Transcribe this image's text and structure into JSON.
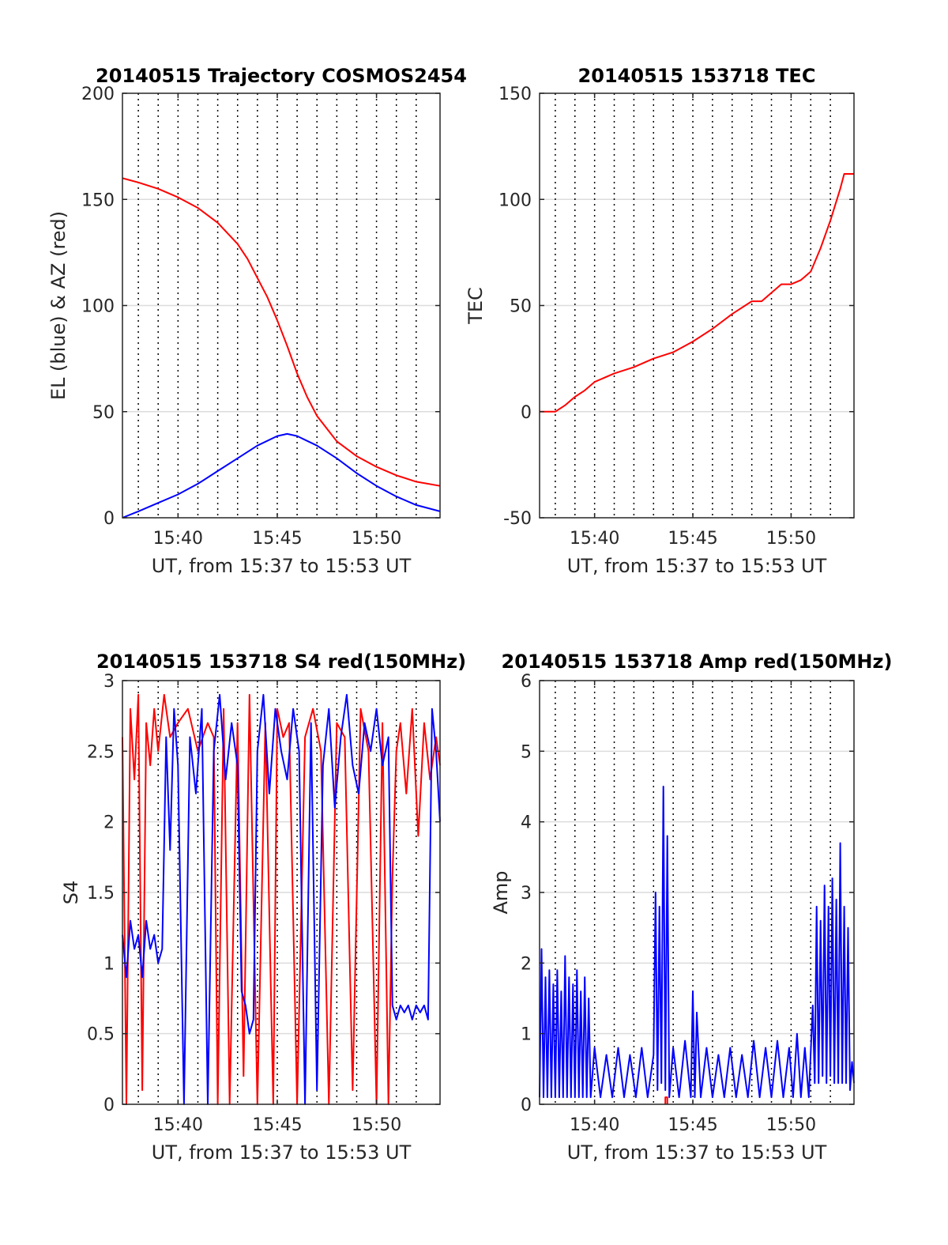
{
  "colors": {
    "red": "#ff0000",
    "blue": "#0000ff",
    "grid": "#dcdcdc",
    "axis": "#262626"
  },
  "chart_data": [
    {
      "type": "line",
      "title": "20140515 Trajectory COSMOS2454",
      "xlabel": "UT, from 15:37 to 15:53 UT",
      "ylabel": "EL (blue) & AZ (red)",
      "xlim": [
        37.2,
        53.2
      ],
      "ylim": [
        0,
        200
      ],
      "x_ticks": [
        40,
        45,
        50
      ],
      "x_tick_labels": [
        "15:40",
        "15:45",
        "15:50"
      ],
      "y_ticks": [
        0,
        50,
        100,
        150,
        200
      ],
      "y_tick_labels": [
        "0",
        "50",
        "100",
        "150",
        "200"
      ],
      "minute_lines": [
        38,
        39,
        40,
        41,
        42,
        43,
        44,
        45,
        46,
        47,
        48,
        49,
        50,
        51,
        52
      ],
      "series": [
        {
          "color": "#ff0000",
          "x": [
            37.2,
            38,
            39,
            40,
            41,
            42,
            43,
            43.5,
            44,
            44.5,
            45,
            45.5,
            46,
            46.5,
            47,
            48,
            49,
            50,
            51,
            52,
            53.2
          ],
          "y": [
            160,
            158,
            155,
            151,
            146,
            139,
            129,
            122,
            113,
            104,
            93,
            81,
            68,
            57,
            48,
            36,
            29,
            24,
            20,
            17,
            15
          ]
        },
        {
          "color": "#0000ff",
          "x": [
            37.2,
            38,
            39,
            40,
            41,
            42,
            43,
            44,
            45,
            45.5,
            46,
            47,
            48,
            49,
            50,
            51,
            52,
            53.2
          ],
          "y": [
            0,
            3,
            7,
            11,
            16,
            22,
            28,
            34,
            38.5,
            39.5,
            38.5,
            34,
            28,
            21,
            15,
            10,
            6,
            3
          ]
        }
      ]
    },
    {
      "type": "line",
      "title": "20140515 153718 TEC",
      "xlabel": "UT, from 15:37 to 15:53 UT",
      "ylabel": "TEC",
      "xlim": [
        37.2,
        53.2
      ],
      "ylim": [
        -50,
        150
      ],
      "x_ticks": [
        40,
        45,
        50
      ],
      "x_tick_labels": [
        "15:40",
        "15:45",
        "15:50"
      ],
      "y_ticks": [
        -50,
        0,
        50,
        100,
        150
      ],
      "y_tick_labels": [
        "-50",
        "0",
        "50",
        "100",
        "150"
      ],
      "minute_lines": [
        38,
        39,
        40,
        41,
        42,
        43,
        44,
        45,
        46,
        47,
        48,
        49,
        50,
        51,
        52
      ],
      "series": [
        {
          "color": "#ff0000",
          "x": [
            37.2,
            38,
            38.5,
            39,
            39.5,
            40,
            41,
            42,
            43,
            44,
            45,
            46,
            47,
            48,
            48.5,
            49,
            49.5,
            50,
            50.5,
            51,
            51.5,
            52,
            52.5,
            52.7,
            53.2
          ],
          "y": [
            0,
            0,
            3,
            7,
            10,
            14,
            18,
            21,
            25,
            28,
            33,
            39,
            46,
            52,
            52,
            56,
            60,
            60,
            62,
            66,
            77,
            90,
            105,
            112,
            112
          ]
        }
      ]
    },
    {
      "type": "line",
      "title": "20140515 153718 S4 red(150MHz)",
      "xlabel": "UT, from 15:37 to 15:53 UT",
      "ylabel": "S4",
      "xlim": [
        37.2,
        53.2
      ],
      "ylim": [
        0,
        3
      ],
      "x_ticks": [
        40,
        45,
        50
      ],
      "x_tick_labels": [
        "15:40",
        "15:45",
        "15:50"
      ],
      "y_ticks": [
        0,
        0.5,
        1,
        1.5,
        2,
        2.5,
        3
      ],
      "y_tick_labels": [
        "0",
        "0.5",
        "1",
        "1.5",
        "2",
        "2.5",
        "3"
      ],
      "minute_lines": [
        38,
        39,
        40,
        41,
        42,
        43,
        44,
        45,
        46,
        47,
        48,
        49,
        50,
        51,
        52
      ],
      "series": [
        {
          "color": "#ff0000",
          "x": [
            37.2,
            37.4,
            37.6,
            37.8,
            38.0,
            38.2,
            38.4,
            38.6,
            38.8,
            39.0,
            39.3,
            39.6,
            40.0,
            40.5,
            41.0,
            41.5,
            41.8,
            42.0,
            42.3,
            42.6,
            43.0,
            43.3,
            43.6,
            44.0,
            44.4,
            44.8,
            45.0,
            45.3,
            45.6,
            46.0,
            46.4,
            46.8,
            47.2,
            47.6,
            48.0,
            48.4,
            48.8,
            49.2,
            49.6,
            50.0,
            50.3,
            50.6,
            50.8,
            51.0,
            51.2,
            51.5,
            51.8,
            52.1,
            52.4,
            52.7,
            53.0,
            53.2
          ],
          "y": [
            2.6,
            0.0,
            2.8,
            2.3,
            2.9,
            0.1,
            2.7,
            2.4,
            2.8,
            2.5,
            2.9,
            2.6,
            2.7,
            2.8,
            2.5,
            2.7,
            2.6,
            0.0,
            2.8,
            0.0,
            2.7,
            0.2,
            2.9,
            0.0,
            2.7,
            0.0,
            2.8,
            2.6,
            2.7,
            0.0,
            2.6,
            2.8,
            2.5,
            0.0,
            2.7,
            2.6,
            0.1,
            2.8,
            2.5,
            0.0,
            2.7,
            0.0,
            1.6,
            2.5,
            2.7,
            2.2,
            2.8,
            1.9,
            2.7,
            2.3,
            2.6,
            2.4
          ]
        },
        {
          "color": "#0000ff",
          "x": [
            37.2,
            37.4,
            37.6,
            37.8,
            38.0,
            38.2,
            38.4,
            38.6,
            38.8,
            39.0,
            39.2,
            39.4,
            39.6,
            39.8,
            40.0,
            40.3,
            40.6,
            40.9,
            41.2,
            41.5,
            41.8,
            42.1,
            42.4,
            42.7,
            43.0,
            43.2,
            43.4,
            43.6,
            43.8,
            44.0,
            44.3,
            44.6,
            44.9,
            45.2,
            45.5,
            45.8,
            46.1,
            46.4,
            46.7,
            47.0,
            47.3,
            47.6,
            47.9,
            48.2,
            48.5,
            48.8,
            49.1,
            49.4,
            49.7,
            50.0,
            50.3,
            50.6,
            50.8,
            51.0,
            51.2,
            51.4,
            51.6,
            51.8,
            52.0,
            52.2,
            52.4,
            52.6,
            52.8,
            53.0,
            53.2
          ],
          "y": [
            1.2,
            0.9,
            1.3,
            1.1,
            1.2,
            0.9,
            1.3,
            1.1,
            1.2,
            1.0,
            1.1,
            2.6,
            1.8,
            2.8,
            2.4,
            0.0,
            2.6,
            2.2,
            2.8,
            0.0,
            2.5,
            2.9,
            2.3,
            2.7,
            2.4,
            0.8,
            0.7,
            0.5,
            0.6,
            2.5,
            2.9,
            2.2,
            2.8,
            2.5,
            2.3,
            2.8,
            2.5,
            0.0,
            2.7,
            0.1,
            2.4,
            2.8,
            2.1,
            2.6,
            2.9,
            2.4,
            2.2,
            2.7,
            2.5,
            2.8,
            2.4,
            2.6,
            0.7,
            0.6,
            0.7,
            0.65,
            0.7,
            0.6,
            0.7,
            0.65,
            0.7,
            0.6,
            2.8,
            2.5,
            2.0
          ]
        }
      ]
    },
    {
      "type": "line",
      "title": "20140515 153718 Amp red(150MHz)",
      "xlabel": "UT, from 15:37 to 15:53 UT",
      "ylabel": "Amp",
      "xlim": [
        37.2,
        53.2
      ],
      "ylim": [
        0,
        6
      ],
      "x_ticks": [
        40,
        45,
        50
      ],
      "x_tick_labels": [
        "15:40",
        "15:45",
        "15:50"
      ],
      "y_ticks": [
        0,
        1,
        2,
        3,
        4,
        5,
        6
      ],
      "y_tick_labels": [
        "0",
        "1",
        "2",
        "3",
        "4",
        "5",
        "6"
      ],
      "minute_lines": [
        38,
        39,
        40,
        41,
        42,
        43,
        44,
        45,
        46,
        47,
        48,
        49,
        50,
        51,
        52
      ],
      "series": [
        {
          "color": "#ff0000",
          "x": [
            43.6,
            43.6,
            43.7,
            43.7
          ],
          "y": [
            0.0,
            0.1,
            0.1,
            0.0
          ]
        },
        {
          "color": "#0000ff",
          "x": [
            37.2,
            37.3,
            37.4,
            37.5,
            37.6,
            37.7,
            37.8,
            37.9,
            38.0,
            38.1,
            38.2,
            38.3,
            38.4,
            38.5,
            38.6,
            38.7,
            38.8,
            38.9,
            39.0,
            39.1,
            39.2,
            39.3,
            39.4,
            39.5,
            39.6,
            39.7,
            39.8,
            40.0,
            40.3,
            40.6,
            40.9,
            41.2,
            41.5,
            41.8,
            42.1,
            42.4,
            42.7,
            43.0,
            43.1,
            43.2,
            43.3,
            43.4,
            43.5,
            43.6,
            43.7,
            43.8,
            44.0,
            44.3,
            44.6,
            44.9,
            45.0,
            45.1,
            45.2,
            45.4,
            45.7,
            46.0,
            46.3,
            46.6,
            46.9,
            47.2,
            47.5,
            47.8,
            48.1,
            48.4,
            48.7,
            49.0,
            49.3,
            49.6,
            49.9,
            50.1,
            50.3,
            50.5,
            50.7,
            50.9,
            51.1,
            51.2,
            51.3,
            51.4,
            51.5,
            51.6,
            51.7,
            51.8,
            51.9,
            52.0,
            52.1,
            52.2,
            52.3,
            52.4,
            52.5,
            52.6,
            52.7,
            52.8,
            52.9,
            53.0,
            53.1,
            53.2
          ],
          "y": [
            0.1,
            2.2,
            0.1,
            1.8,
            0.1,
            1.9,
            0.1,
            1.7,
            0.1,
            1.9,
            0.1,
            1.6,
            0.1,
            2.1,
            0.1,
            1.8,
            0.1,
            1.7,
            0.1,
            1.9,
            0.1,
            1.6,
            0.1,
            1.8,
            0.1,
            1.5,
            0.1,
            0.8,
            0.1,
            0.7,
            0.1,
            0.8,
            0.1,
            0.7,
            0.1,
            0.8,
            0.1,
            0.7,
            3.0,
            0.2,
            2.8,
            0.3,
            4.5,
            0.2,
            3.8,
            0.1,
            0.8,
            0.1,
            0.9,
            0.1,
            1.6,
            0.1,
            1.3,
            0.1,
            0.8,
            0.1,
            0.7,
            0.1,
            0.8,
            0.1,
            0.7,
            0.1,
            0.9,
            0.1,
            0.8,
            0.1,
            0.9,
            0.1,
            0.8,
            0.1,
            1.0,
            0.1,
            0.8,
            0.1,
            1.4,
            0.3,
            2.8,
            0.3,
            2.6,
            0.4,
            3.1,
            0.3,
            2.8,
            0.4,
            3.2,
            0.3,
            2.9,
            0.3,
            3.7,
            0.3,
            2.8,
            0.3,
            2.5,
            0.2,
            0.6,
            0.3
          ]
        }
      ]
    }
  ]
}
